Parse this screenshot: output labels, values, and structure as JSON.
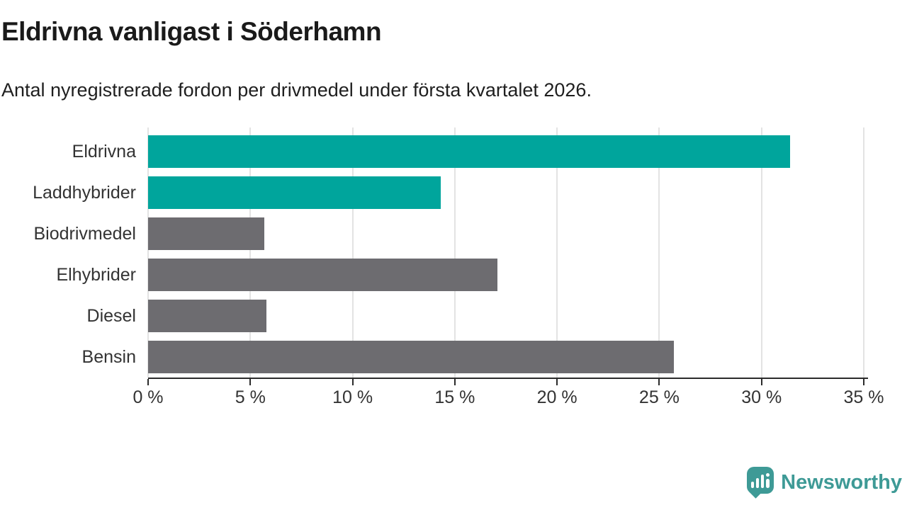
{
  "header": {
    "title": "Eldrivna vanligast i Söderhamn",
    "subtitle": "Antal nyregistrerade fordon per drivmedel under första kvartalet 2026."
  },
  "chart_data": {
    "type": "bar",
    "orientation": "horizontal",
    "title": "Eldrivna vanligast i Söderhamn",
    "subtitle": "Antal nyregistrerade fordon per drivmedel under första kvartalet 2026.",
    "categories": [
      "Eldrivna",
      "Laddhybrider",
      "Biodrivmedel",
      "Elhybrider",
      "Diesel",
      "Bensin"
    ],
    "values": [
      31.4,
      14.3,
      5.7,
      17.1,
      5.8,
      25.7
    ],
    "unit": "%",
    "bar_colors": [
      "#00a59c",
      "#00a59c",
      "#6d6c70",
      "#6d6c70",
      "#6d6c70",
      "#6d6c70"
    ],
    "highlight_color": "#00a59c",
    "default_color": "#6d6c70",
    "xlim": [
      0,
      35
    ],
    "x_tick_values": [
      0,
      5,
      10,
      15,
      20,
      25,
      30,
      35
    ],
    "x_tick_labels": [
      "0 %",
      "5 %",
      "10 %",
      "15 %",
      "20 %",
      "25 %",
      "30 %",
      "35 %"
    ],
    "xlabel": "",
    "ylabel": "",
    "grid": "vertical",
    "gridline_color": "#e3e3e3",
    "axis_color": "#2b2b2b",
    "label_color": "#333333"
  },
  "branding": {
    "logo_text": "Newsworthy",
    "logo_color": "#3e9a96",
    "logo_icon": "speech-bubble-bar-chart-icon"
  }
}
